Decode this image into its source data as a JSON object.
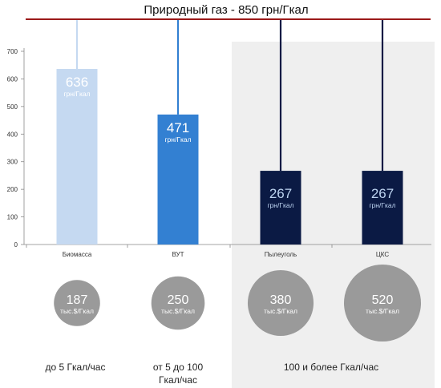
{
  "title": "Природный газ - 850 грн/Гкал",
  "chart_data": {
    "type": "bar",
    "categories": [
      "Биомасса",
      "ВУТ",
      "Пылеуголь",
      "ЦКС"
    ],
    "values": [
      636,
      471,
      267,
      267
    ],
    "value_unit": "грн/Гкал",
    "ylim": [
      0,
      700
    ],
    "yticks": [
      0,
      100,
      200,
      300,
      400,
      500,
      600,
      700
    ],
    "reference_line": {
      "label": "Природный газ - 850 грн/Гкал",
      "value": 850
    },
    "bar_colors": [
      "#c5d9f1",
      "#3380d2",
      "#0b1a44",
      "#0b1a44"
    ],
    "reference_color": "#9b1a1a",
    "grid": false,
    "capex": {
      "values": [
        187,
        250,
        380,
        520
      ],
      "unit": "тыс.$/Гкал",
      "color": "#9a9a9a"
    },
    "capacity_ranges": [
      {
        "label": "до 5 Гкал/час"
      },
      {
        "label": "от 5 до 100 Гкал/час"
      },
      {
        "label": "100 и более Гкал/час"
      }
    ],
    "shaded_background_color": "#efefef"
  }
}
